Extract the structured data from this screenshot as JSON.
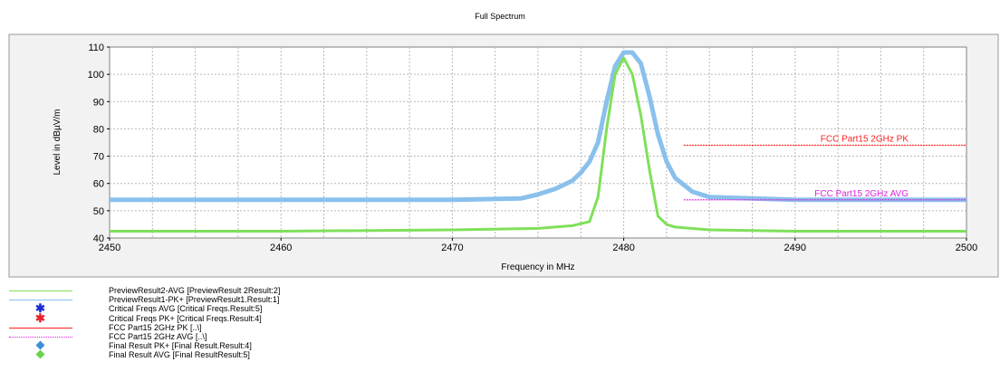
{
  "chart_data": {
    "type": "line",
    "title": "Full Spectrum",
    "xlabel": "Frequency in MHz",
    "ylabel": "Level in dBµV/m",
    "xlim": [
      2450,
      2500
    ],
    "ylim": [
      40,
      110
    ],
    "x_ticks": [
      2450,
      2460,
      2470,
      2480,
      2490,
      2500
    ],
    "y_ticks": [
      40,
      50,
      60,
      70,
      80,
      90,
      100,
      110
    ],
    "grid": true,
    "series": [
      {
        "name": "PreviewResult2-AVG",
        "color": "#7fe05a",
        "x": [
          2450,
          2460,
          2470,
          2475,
          2477,
          2478,
          2478.5,
          2479,
          2479.5,
          2480,
          2480.5,
          2481,
          2481.5,
          2482,
          2482.5,
          2483,
          2485,
          2490,
          2500
        ],
        "y": [
          42.5,
          42.5,
          43,
          43.5,
          44.5,
          46,
          55,
          80,
          100,
          106,
          100,
          85,
          65,
          48,
          45,
          44,
          43,
          42.5,
          42.5
        ]
      },
      {
        "name": "PreviewResult1-PK+",
        "color": "#8ac0ec",
        "x": [
          2450,
          2460,
          2470,
          2474,
          2475,
          2476,
          2477,
          2477.5,
          2478,
          2478.5,
          2479,
          2479.5,
          2480,
          2480.5,
          2481,
          2481.5,
          2482,
          2482.5,
          2483,
          2484,
          2485,
          2490,
          2500
        ],
        "y": [
          54,
          54,
          54,
          54.5,
          56,
          58,
          61,
          64,
          68,
          75,
          90,
          103,
          108,
          108,
          104,
          92,
          78,
          68,
          62,
          57,
          55,
          54,
          54
        ]
      }
    ],
    "limit_lines": [
      {
        "name": "FCC Part15 2GHz  PK",
        "color": "#ff2020",
        "x": [
          2483.5,
          2500
        ],
        "y": [
          74,
          74
        ]
      },
      {
        "name": "FCC Part15 2GHz  AVG",
        "color": "#dd22dd",
        "x": [
          2483.5,
          2500
        ],
        "y": [
          54,
          54
        ]
      }
    ]
  },
  "legend": [
    {
      "label": "PreviewResult2-AVG  [PreviewResult 2Result:2]",
      "color": "#7fe05a",
      "kind": "line"
    },
    {
      "label": "PreviewResult1-PK+  [PreviewResult1.Result:1]",
      "color": "#8ac0ec",
      "kind": "line"
    },
    {
      "label": "Critical Freqs AVG  [Critical  Freqs.Result:5]",
      "color": "#1a2cd6",
      "kind": "star"
    },
    {
      "label": "Critical  Freqs PK+  [Critical  Freqs.Result:4]",
      "color": "#e8202a",
      "kind": "star"
    },
    {
      "label": "FCC Part15 2GHz  PK  [..\\]",
      "color": "#ff2020",
      "kind": "line"
    },
    {
      "label": "FCC Part15 2GHz  AVG  [..\\]",
      "color": "#dd22dd",
      "kind": "dash"
    },
    {
      "label": "Final  Result PK+  [Final  Result.Result:4]",
      "color": "#3d8fd6",
      "kind": "diamond"
    },
    {
      "label": "Final  Result AVG  [Final  ResultResult:5]",
      "color": "#6ad34a",
      "kind": "diamond"
    }
  ]
}
